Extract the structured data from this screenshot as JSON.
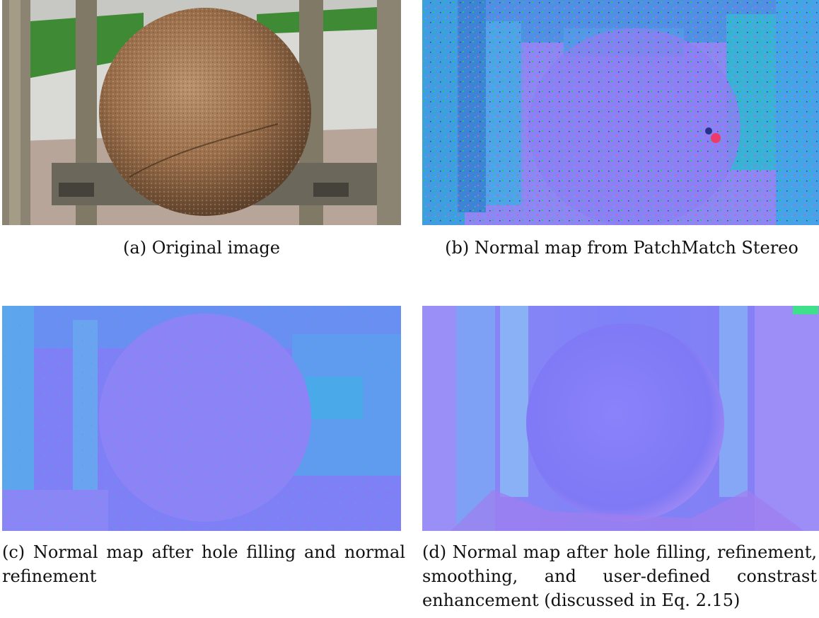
{
  "figure": {
    "panels": [
      {
        "id": "a",
        "caption": "(a) Original image"
      },
      {
        "id": "b",
        "caption": "(b) Normal map from PatchMatch Stereo"
      },
      {
        "id": "c",
        "caption": "(c) Normal map after hole filling and normal refinement"
      },
      {
        "id": "d",
        "caption": "(d) Normal map after hole filling, refinement, smoothing, and user-defined constrast enhancement (discussed in Eq. 2.15)"
      }
    ]
  },
  "colors": {
    "stone": "#9a6e4a",
    "grass": "#3f8a34",
    "pavement": "#d9dad6",
    "normal_base": "#7f7cf8",
    "normal_cyan": "#3fa0e6",
    "normal_teal": "#33b9b0"
  }
}
